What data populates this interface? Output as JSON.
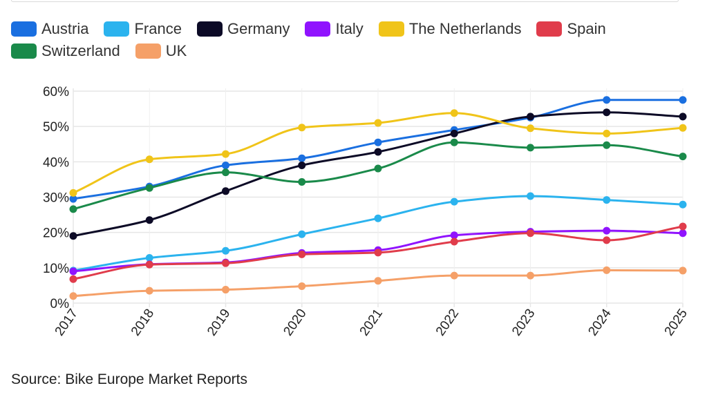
{
  "chart_data": {
    "type": "line",
    "x": [
      "2017",
      "2018",
      "2019",
      "2020",
      "2021",
      "2022",
      "2023",
      "2024",
      "2025"
    ],
    "ylim": [
      0,
      60
    ],
    "y_ticks": [
      "0%",
      "10%",
      "20%",
      "30%",
      "40%",
      "50%",
      "60%"
    ],
    "y_tick_values": [
      0,
      10,
      20,
      30,
      40,
      50,
      60
    ],
    "grid": true,
    "legend_position": "top-left",
    "series": [
      {
        "name": "Austria",
        "color": "#1a6fe0",
        "values": [
          29.5,
          33,
          39,
          41,
          45.5,
          49,
          52.5,
          57.5,
          57.5
        ]
      },
      {
        "name": "France",
        "color": "#2bb3ee",
        "values": [
          9.2,
          12.8,
          14.8,
          19.5,
          24,
          28.7,
          30.3,
          29.2,
          27.9
        ]
      },
      {
        "name": "Germany",
        "color": "#0c0a26",
        "values": [
          19,
          23.5,
          31.7,
          39,
          42.8,
          48,
          52.8,
          54,
          52.8
        ]
      },
      {
        "name": "Italy",
        "color": "#9013fe",
        "values": [
          9,
          11,
          11.5,
          14.2,
          15,
          19.2,
          20.2,
          20.5,
          19.8
        ]
      },
      {
        "name": "The Netherlands",
        "color": "#f0c419",
        "values": [
          31.2,
          40.7,
          42.2,
          49.7,
          51,
          53.8,
          49.5,
          48,
          49.6
        ]
      },
      {
        "name": "Spain",
        "color": "#e03c4b",
        "values": [
          6.8,
          10.9,
          11.3,
          13.8,
          14.3,
          17.4,
          19.8,
          17.8,
          21.7
        ]
      },
      {
        "name": "Switzerland",
        "color": "#1a8a4a",
        "values": [
          26.6,
          32.6,
          37,
          34.3,
          38.1,
          45.5,
          44,
          44.7,
          41.5
        ]
      },
      {
        "name": "UK",
        "color": "#f5a068",
        "values": [
          2,
          3.5,
          3.8,
          4.8,
          6.3,
          7.8,
          7.8,
          9.3,
          9.2
        ]
      }
    ]
  },
  "legend": {
    "row1": [
      "Austria",
      "France",
      "Germany",
      "Italy",
      "The Netherlands",
      "Spain"
    ],
    "row2": [
      "Switzerland",
      "UK"
    ]
  },
  "source_text": "Source: Bike Europe Market Reports"
}
